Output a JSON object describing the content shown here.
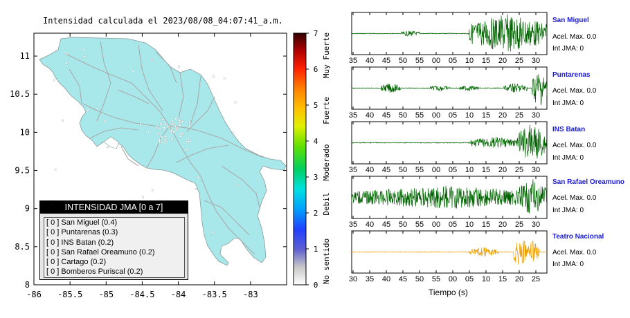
{
  "title": "Intensidad calculada el 2023/08/08_04:07:41_a.m.",
  "colors": {
    "land": "#a8e8ea",
    "road": "#aaaaaa",
    "trace_normal": "#006400",
    "trace_highlight": "#f0a000",
    "station_name": "#1a1ad6"
  },
  "legend": {
    "title": "INTENSIDAD JMA [0 a 7]",
    "items": [
      "[ 0 ]  San Miguel (0.4)",
      "[ 0 ]  Puntarenas (0.3)",
      "[ 0 ]  INS Batan (0.2)",
      "[ 0 ]  San Rafael Oreamuno (0.2)",
      "[ 0 ]  Cartago (0.2)",
      "[ 0 ]  Bomberos Puriscal (0.2)"
    ]
  },
  "colorbar": {
    "ticks": [
      "0",
      "1",
      "2",
      "3",
      "4",
      "5",
      "6",
      "7"
    ],
    "labels": [
      "No sentido",
      "Debil",
      "Moderado",
      "Fuerte",
      "Muy Fuerte"
    ]
  },
  "stations": [
    {
      "name": "San Miguel",
      "acel": "Acel. Max. 0.0",
      "jma": "Int JMA: 0"
    },
    {
      "name": "Puntarenas",
      "acel": "Acel. Max. 0.0",
      "jma": "Int JMA: 0"
    },
    {
      "name": "INS Batan",
      "acel": "Acel. Max. 0.0",
      "jma": "Int JMA: 0"
    },
    {
      "name": "San Rafael Oreamuno",
      "acel": "Acel. Max. 0.0",
      "jma": "Int JMA: 0"
    },
    {
      "name": "Teatro Nacional",
      "acel": "Acel. Max. 0.0",
      "jma": "Int JMA: 0"
    }
  ],
  "time_axis_label": "Tiempo (s)",
  "chart_data": [
    {
      "type": "scatter",
      "title": "Intensidad calculada el 2023/08/08_04:07:41_a.m.",
      "xlim": [
        -86,
        -82.5
      ],
      "ylim": [
        8,
        11.3
      ],
      "x_ticks": [
        "-86",
        "-85.5",
        "-85",
        "-84.5",
        "-84",
        "-83.5",
        "-83"
      ],
      "y_ticks": [
        "8",
        "8.5",
        "9",
        "9.5",
        "10",
        "10.5",
        "11"
      ],
      "series": [
        {
          "values": [
            {
              "name": "San Miguel",
              "intensity": 0.4
            },
            {
              "name": "Puntarenas",
              "intensity": 0.3
            },
            {
              "name": "INS Batan",
              "intensity": 0.2
            },
            {
              "name": "San Rafael Oreamuno",
              "intensity": 0.2
            },
            {
              "name": "Cartago",
              "intensity": 0.2
            },
            {
              "name": "Bomberos Puriscal",
              "intensity": 0.2
            }
          ]
        }
      ]
    },
    {
      "type": "line",
      "xlabel": "Tiempo (s)",
      "panels": [
        {
          "station": "San Miguel",
          "tick_labels": [
            "35",
            "40",
            "45",
            "50",
            "55",
            "00",
            "05",
            "10",
            "15",
            "20",
            "25",
            "30"
          ],
          "highlight": false,
          "bursts": [
            [
              0.6,
              1.0,
              1.0
            ],
            [
              0.25,
              0.35,
              0.15
            ]
          ]
        },
        {
          "station": "Puntarenas",
          "tick_labels": [
            "35",
            "40",
            "45",
            "50",
            "55",
            "00",
            "05",
            "10",
            "15",
            "20",
            "25",
            "30"
          ],
          "highlight": false,
          "bursts": [
            [
              0.92,
              1.0,
              1.0
            ],
            [
              0.15,
              0.25,
              0.25
            ],
            [
              0.78,
              0.9,
              0.25
            ],
            [
              0.4,
              0.5,
              0.15
            ],
            [
              0.55,
              0.65,
              0.15
            ]
          ]
        },
        {
          "station": "INS Batan",
          "tick_labels": [
            "35",
            "40",
            "45",
            "50",
            "55",
            "00",
            "05",
            "10",
            "15",
            "20",
            "25",
            "30"
          ],
          "highlight": false,
          "bursts": [
            [
              0.85,
              1.0,
              1.0
            ],
            [
              0.6,
              0.85,
              0.3
            ]
          ]
        },
        {
          "station": "San Rafael Oreamuno",
          "tick_labels": [
            "35",
            "40",
            "45",
            "50",
            "55",
            "00",
            "05",
            "10",
            "15",
            "20",
            "25",
            "30"
          ],
          "highlight": false,
          "bursts": [
            [
              0.0,
              1.0,
              0.6
            ],
            [
              0.85,
              1.0,
              0.95
            ]
          ]
        },
        {
          "station": "Teatro Nacional",
          "tick_labels": [
            "30",
            "35",
            "40",
            "45",
            "50",
            "55",
            "00",
            "05",
            "10",
            "15",
            "20",
            "25"
          ],
          "highlight": true,
          "bursts": [
            [
              0.83,
              0.9,
              0.85
            ],
            [
              0.9,
              0.96,
              0.6
            ],
            [
              0.6,
              0.75,
              0.25
            ]
          ]
        }
      ]
    }
  ]
}
